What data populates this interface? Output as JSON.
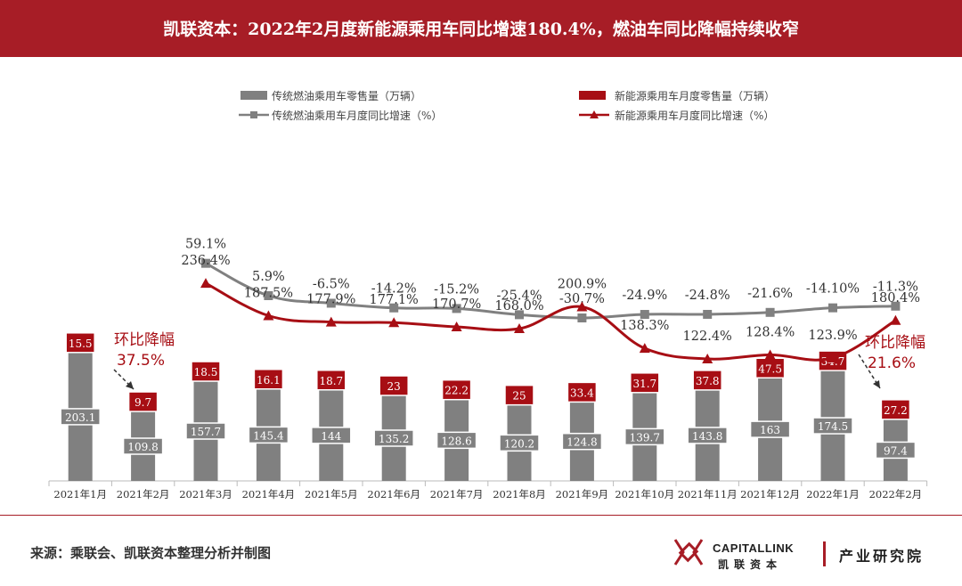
{
  "header": {
    "title": "凯联资本：2022年2月度新能源乘用车同比增速180.4%，燃油车同比降幅持续收窄"
  },
  "footer": {
    "source": "来源：乘联会、凯联资本整理分析并制图",
    "brand_en": "CAPITALLINK",
    "brand_cn": "凯联资本",
    "institute": "产业研究院"
  },
  "colors": {
    "brand_red": "#a71d26",
    "ice_gray": "#808080",
    "nev_red": "#a70e14"
  },
  "chart_data": {
    "type": "bar",
    "categories": [
      "2021年1月",
      "2021年2月",
      "2021年3月",
      "2021年4月",
      "2021年5月",
      "2021年6月",
      "2021年7月",
      "2021年8月",
      "2021年9月",
      "2021年10月",
      "2021年11月",
      "2021年12月",
      "2022年1月",
      "2022年2月"
    ],
    "legend": {
      "ice_sales": "传统燃油乘用车零售量（万辆）",
      "nev_sales": "新能源乘用车月度零售量（万辆）",
      "ice_yoy": "传统燃油乘用车月度同比增速（%）",
      "nev_yoy": "新能源乘用车月度同比增速（%）"
    },
    "series": [
      {
        "name": "传统燃油乘用车零售量（万辆）",
        "type": "bar",
        "values": [
          203.1,
          109.8,
          157.7,
          145.4,
          144,
          135.2,
          128.6,
          120.2,
          124.8,
          139.7,
          143.8,
          163,
          174.5,
          97.4
        ],
        "labels": [
          "203.1",
          "109.8",
          "157.7",
          "145.4",
          "144",
          "135.2",
          "128.6",
          "120.2",
          "124.8",
          "139.7",
          "143.8",
          "163",
          "174.5",
          "97.4"
        ]
      },
      {
        "name": "新能源乘用车月度零售量（万辆）",
        "type": "bar",
        "values": [
          15.5,
          9.7,
          18.5,
          16.1,
          18.7,
          23,
          22.2,
          25,
          33.4,
          31.7,
          37.8,
          47.5,
          34.7,
          27.2
        ],
        "labels": [
          "15.5",
          "9.7",
          "18.5",
          "16.1",
          "18.7",
          "23",
          "22.2",
          "25",
          "33.4",
          "31.7",
          "37.8",
          "47.5",
          "34.7",
          "27.2"
        ]
      },
      {
        "name": "传统燃油乘用车月度同比增速（%）",
        "type": "line",
        "values": [
          null,
          null,
          59.1,
          5.9,
          -6.5,
          -14.2,
          -15.2,
          -25.4,
          -30.7,
          -24.9,
          -24.8,
          -21.6,
          -14.1,
          -11.3
        ],
        "labels": [
          "",
          "",
          "59.1%",
          "5.9%",
          "-6.5%",
          "-14.2%",
          "-15.2%",
          "-25.4%",
          "-30.7%",
          "-24.9%",
          "-24.8%",
          "-21.6%",
          "-14.10%",
          "-11.3%"
        ]
      },
      {
        "name": "新能源乘用车月度同比增速（%）",
        "type": "line",
        "values": [
          null,
          null,
          236.4,
          187.5,
          177.9,
          177.1,
          170.7,
          168.0,
          200.9,
          138.3,
          122.4,
          128.4,
          123.9,
          180.4
        ],
        "labels": [
          "",
          "",
          "236.4%",
          "187.5%",
          "177.9%",
          "177.1%",
          "170.7%",
          "168.0%",
          "200.9%",
          "138.3%",
          "122.4%",
          "128.4%",
          "123.9%",
          "180.4%"
        ]
      }
    ],
    "annotations": [
      {
        "text": "环比降幅",
        "value": "37.5%"
      },
      {
        "text": "环比降幅",
        "value": "21.6%"
      }
    ]
  }
}
